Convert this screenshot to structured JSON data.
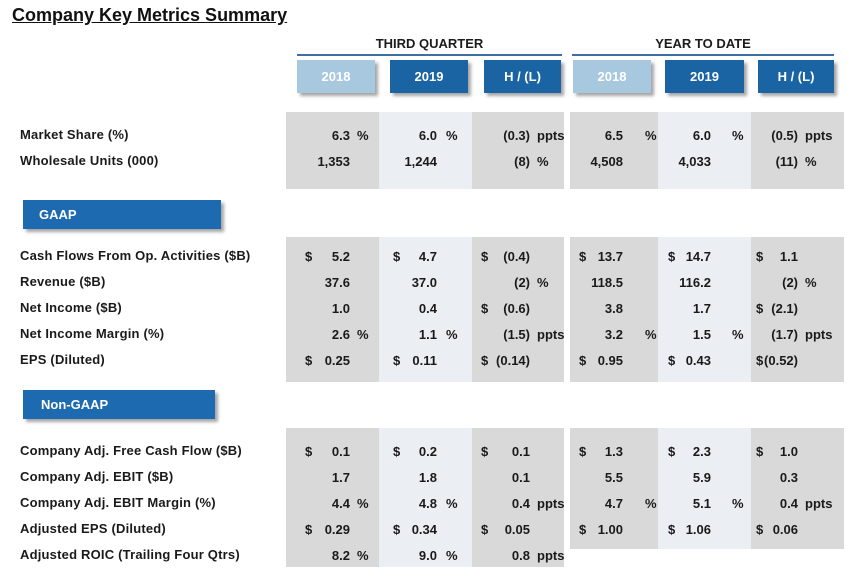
{
  "title": "Company Key Metrics Summary",
  "sections": {
    "third_quarter": "THIRD QUARTER",
    "year_to_date": "YEAR TO DATE"
  },
  "columns": [
    "2018",
    "2019",
    "H / (L)",
    "2018",
    "2019",
    "H / (L)"
  ],
  "groups": {
    "gaap": "GAAP",
    "non_gaap": "Non-GAAP"
  },
  "rows": [
    {
      "label": "Market Share (%)",
      "cells": [
        {
          "cur": "",
          "val": "6.3",
          "unit": "%"
        },
        {
          "cur": "",
          "val": "6.0",
          "unit": "%"
        },
        {
          "cur": "",
          "val": "(0.3)",
          "unit": "ppts"
        },
        {
          "cur": "",
          "val": "6.5",
          "unit": "%"
        },
        {
          "cur": "",
          "val": "6.0",
          "unit": "%"
        },
        {
          "cur": "",
          "val": "(0.5)",
          "unit": "ppts"
        }
      ]
    },
    {
      "label": "Wholesale Units (000)",
      "cells": [
        {
          "cur": "",
          "val": "1,353",
          "unit": ""
        },
        {
          "cur": "",
          "val": "1,244",
          "unit": ""
        },
        {
          "cur": "",
          "val": "(8)",
          "unit": "%"
        },
        {
          "cur": "",
          "val": "4,508",
          "unit": ""
        },
        {
          "cur": "",
          "val": "4,033",
          "unit": ""
        },
        {
          "cur": "",
          "val": "(11)",
          "unit": "%"
        }
      ]
    },
    {
      "label": "Cash Flows From Op. Activities ($B)",
      "cells": [
        {
          "cur": "$",
          "val": "5.2",
          "unit": ""
        },
        {
          "cur": "$",
          "val": "4.7",
          "unit": ""
        },
        {
          "cur": "$",
          "val": "(0.4)",
          "unit": ""
        },
        {
          "cur": "$",
          "val": "13.7",
          "unit": ""
        },
        {
          "cur": "$",
          "val": "14.7",
          "unit": ""
        },
        {
          "cur": "$",
          "val": "1.1",
          "unit": ""
        }
      ]
    },
    {
      "label": "Revenue ($B)",
      "cells": [
        {
          "cur": "",
          "val": "37.6",
          "unit": ""
        },
        {
          "cur": "",
          "val": "37.0",
          "unit": ""
        },
        {
          "cur": "",
          "val": "(2)",
          "unit": "%"
        },
        {
          "cur": "",
          "val": "118.5",
          "unit": ""
        },
        {
          "cur": "",
          "val": "116.2",
          "unit": ""
        },
        {
          "cur": "",
          "val": "(2)",
          "unit": "%"
        }
      ]
    },
    {
      "label": "Net Income ($B)",
      "cells": [
        {
          "cur": "",
          "val": "1.0",
          "unit": ""
        },
        {
          "cur": "",
          "val": "0.4",
          "unit": ""
        },
        {
          "cur": "$",
          "val": "(0.6)",
          "unit": ""
        },
        {
          "cur": "",
          "val": "3.8",
          "unit": ""
        },
        {
          "cur": "",
          "val": "1.7",
          "unit": ""
        },
        {
          "cur": "$",
          "val": "(2.1)",
          "unit": ""
        }
      ]
    },
    {
      "label": "Net Income Margin (%)",
      "cells": [
        {
          "cur": "",
          "val": "2.6",
          "unit": "%"
        },
        {
          "cur": "",
          "val": "1.1",
          "unit": "%"
        },
        {
          "cur": "",
          "val": "(1.5)",
          "unit": "ppts"
        },
        {
          "cur": "",
          "val": "3.2",
          "unit": "%"
        },
        {
          "cur": "",
          "val": "1.5",
          "unit": "%"
        },
        {
          "cur": "",
          "val": "(1.7)",
          "unit": "ppts"
        }
      ]
    },
    {
      "label": "EPS (Diluted)",
      "cells": [
        {
          "cur": "$",
          "val": "0.25",
          "unit": ""
        },
        {
          "cur": "$",
          "val": "0.11",
          "unit": ""
        },
        {
          "cur": "$",
          "val": "(0.14)",
          "unit": ""
        },
        {
          "cur": "$",
          "val": "0.95",
          "unit": ""
        },
        {
          "cur": "$",
          "val": "0.43",
          "unit": ""
        },
        {
          "cur": "$",
          "val": "(0.52)",
          "unit": ""
        }
      ]
    },
    {
      "label": "Company Adj. Free Cash Flow ($B)",
      "cells": [
        {
          "cur": "$",
          "val": "0.1",
          "unit": ""
        },
        {
          "cur": "$",
          "val": "0.2",
          "unit": ""
        },
        {
          "cur": "$",
          "val": "0.1",
          "unit": ""
        },
        {
          "cur": "$",
          "val": "1.3",
          "unit": ""
        },
        {
          "cur": "$",
          "val": "2.3",
          "unit": ""
        },
        {
          "cur": "$",
          "val": "1.0",
          "unit": ""
        }
      ]
    },
    {
      "label": "Company Adj. EBIT ($B)",
      "cells": [
        {
          "cur": "",
          "val": "1.7",
          "unit": ""
        },
        {
          "cur": "",
          "val": "1.8",
          "unit": ""
        },
        {
          "cur": "",
          "val": "0.1",
          "unit": ""
        },
        {
          "cur": "",
          "val": "5.5",
          "unit": ""
        },
        {
          "cur": "",
          "val": "5.9",
          "unit": ""
        },
        {
          "cur": "",
          "val": "0.3",
          "unit": ""
        }
      ]
    },
    {
      "label": "Company Adj. EBIT Margin (%)",
      "cells": [
        {
          "cur": "",
          "val": "4.4",
          "unit": "%"
        },
        {
          "cur": "",
          "val": "4.8",
          "unit": "%"
        },
        {
          "cur": "",
          "val": "0.4",
          "unit": "ppts"
        },
        {
          "cur": "",
          "val": "4.7",
          "unit": "%"
        },
        {
          "cur": "",
          "val": "5.1",
          "unit": "%"
        },
        {
          "cur": "",
          "val": "0.4",
          "unit": "ppts"
        }
      ]
    },
    {
      "label": "Adjusted EPS (Diluted)",
      "cells": [
        {
          "cur": "$",
          "val": "0.29",
          "unit": ""
        },
        {
          "cur": "$",
          "val": "0.34",
          "unit": ""
        },
        {
          "cur": "$",
          "val": "0.05",
          "unit": ""
        },
        {
          "cur": "$",
          "val": "1.00",
          "unit": ""
        },
        {
          "cur": "$",
          "val": "1.06",
          "unit": ""
        },
        {
          "cur": "$",
          "val": "0.06",
          "unit": ""
        }
      ]
    },
    {
      "label": "Adjusted ROIC (Trailing Four Qtrs)",
      "cells": [
        {
          "cur": "",
          "val": "8.2",
          "unit": "%"
        },
        {
          "cur": "",
          "val": "9.0",
          "unit": "%"
        },
        {
          "cur": "",
          "val": "0.8",
          "unit": "ppts"
        },
        {
          "cur": "",
          "val": "",
          "unit": ""
        },
        {
          "cur": "",
          "val": "",
          "unit": ""
        },
        {
          "cur": "",
          "val": "",
          "unit": ""
        }
      ]
    }
  ],
  "colors": {
    "header_light": "#a8c8df",
    "header_dark": "#1a64a3",
    "group_bar": "#1e6ab0",
    "shade_gray": "#d9d9d9",
    "shade_light": "#ebeef2",
    "rule": "#3d6ea6"
  }
}
